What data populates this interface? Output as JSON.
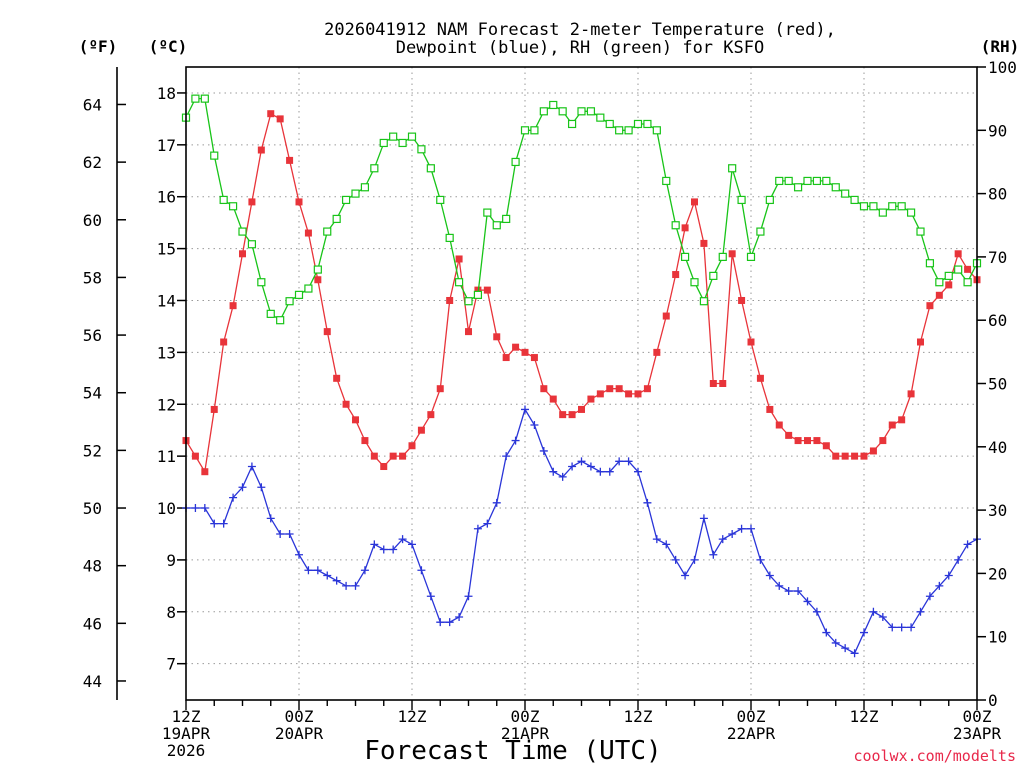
{
  "title": [
    "2026041912 NAM Forecast 2-meter Temperature (red),",
    "Dewpoint (blue), RH (green) for KSFO"
  ],
  "units": {
    "fahrenheit": "(ºF)",
    "celsius": "(ºC)",
    "rh": "(RH)"
  },
  "xlabel": "Forecast Time (UTC)",
  "credit": "coolwx.com/modelts",
  "colors": {
    "temperature": "#e8343a",
    "dewpoint": "#2a35d8",
    "rh": "#18c418",
    "grid": "#9a9a9a"
  },
  "chart_data": {
    "type": "line",
    "x_unit": "forecast hour",
    "x_ticks": [
      {
        "hour": 0,
        "lines": [
          "12Z",
          "19APR",
          "2026"
        ]
      },
      {
        "hour": 12,
        "lines": [
          "00Z",
          "20APR"
        ]
      },
      {
        "hour": 24,
        "lines": [
          "12Z"
        ]
      },
      {
        "hour": 36,
        "lines": [
          "00Z",
          "21APR"
        ]
      },
      {
        "hour": 48,
        "lines": [
          "12Z"
        ]
      },
      {
        "hour": 60,
        "lines": [
          "00Z",
          "22APR"
        ]
      },
      {
        "hour": 72,
        "lines": [
          "12Z"
        ]
      },
      {
        "hour": 84,
        "lines": [
          "00Z",
          "23APR"
        ]
      }
    ],
    "xlim": [
      0,
      84
    ],
    "celsius_axis": {
      "ylim": [
        6.3,
        18.5
      ],
      "ticks": [
        7,
        8,
        9,
        10,
        11,
        12,
        13,
        14,
        15,
        16,
        17,
        18
      ]
    },
    "fahrenheit_axis": {
      "ylim": [
        43.34,
        65.3
      ],
      "ticks": [
        44,
        46,
        48,
        50,
        52,
        54,
        56,
        58,
        60,
        62,
        64
      ]
    },
    "rh_axis": {
      "ylim": [
        0,
        100
      ],
      "ticks": [
        0,
        10,
        20,
        30,
        40,
        50,
        60,
        70,
        80,
        90,
        100
      ]
    },
    "grid": true,
    "series": [
      {
        "name": "Temperature",
        "axis": "celsius",
        "marker": "filled-square",
        "x": [
          0,
          1,
          2,
          3,
          4,
          5,
          6,
          7,
          8,
          9,
          10,
          11,
          12,
          13,
          14,
          15,
          16,
          17,
          18,
          19,
          20,
          21,
          22,
          23,
          24,
          25,
          26,
          27,
          28,
          29,
          30,
          31,
          32,
          33,
          34,
          35,
          36,
          37,
          38,
          39,
          40,
          41,
          42,
          43,
          44,
          45,
          46,
          47,
          48,
          49,
          50,
          51,
          52,
          53,
          54,
          55,
          56,
          57,
          58,
          59,
          60,
          61,
          62,
          63,
          64,
          65,
          66,
          67,
          68,
          69,
          70,
          71,
          72,
          73,
          74,
          75,
          76,
          77,
          78,
          79,
          80,
          81,
          82,
          83,
          84
        ],
        "y": [
          11.3,
          11.0,
          10.7,
          11.9,
          13.2,
          13.9,
          14.9,
          15.9,
          16.9,
          17.6,
          17.5,
          16.7,
          15.9,
          15.3,
          14.4,
          13.4,
          12.5,
          12.0,
          11.7,
          11.3,
          11.0,
          10.8,
          11.0,
          11.0,
          11.2,
          11.5,
          11.8,
          12.3,
          14.0,
          14.8,
          13.4,
          14.2,
          14.2,
          13.3,
          12.9,
          13.1,
          13.0,
          12.9,
          12.3,
          12.1,
          11.8,
          11.8,
          11.9,
          12.1,
          12.2,
          12.3,
          12.3,
          12.2,
          12.2,
          12.3,
          13.0,
          13.7,
          14.5,
          15.4,
          15.9,
          15.1,
          12.4,
          12.4,
          14.9,
          14.0,
          13.2,
          12.5,
          11.9,
          11.6,
          11.4,
          11.3,
          11.3,
          11.3,
          11.2,
          11.0,
          11.0,
          11.0,
          11.0,
          11.1,
          11.3,
          11.6,
          11.7,
          12.2,
          13.2,
          13.9,
          14.1,
          14.3,
          14.9,
          14.6,
          14.4
        ]
      },
      {
        "name": "Dewpoint",
        "axis": "celsius",
        "marker": "plus",
        "x": [
          0,
          1,
          2,
          3,
          4,
          5,
          6,
          7,
          8,
          9,
          10,
          11,
          12,
          13,
          14,
          15,
          16,
          17,
          18,
          19,
          20,
          21,
          22,
          23,
          24,
          25,
          26,
          27,
          28,
          29,
          30,
          31,
          32,
          33,
          34,
          35,
          36,
          37,
          38,
          39,
          40,
          41,
          42,
          43,
          44,
          45,
          46,
          47,
          48,
          49,
          50,
          51,
          52,
          53,
          54,
          55,
          56,
          57,
          58,
          59,
          60,
          61,
          62,
          63,
          64,
          65,
          66,
          67,
          68,
          69,
          70,
          71,
          72,
          73,
          74,
          75,
          76,
          77,
          78,
          79,
          80,
          81,
          82,
          83,
          84
        ],
        "y": [
          10.0,
          10.0,
          10.0,
          9.7,
          9.7,
          10.2,
          10.4,
          10.8,
          10.4,
          9.8,
          9.5,
          9.5,
          9.1,
          8.8,
          8.8,
          8.7,
          8.6,
          8.5,
          8.5,
          8.8,
          9.3,
          9.2,
          9.2,
          9.4,
          9.3,
          8.8,
          8.3,
          7.8,
          7.8,
          7.9,
          8.3,
          9.6,
          9.7,
          10.1,
          11.0,
          11.3,
          11.9,
          11.6,
          11.1,
          10.7,
          10.6,
          10.8,
          10.9,
          10.8,
          10.7,
          10.7,
          10.9,
          10.9,
          10.7,
          10.1,
          9.4,
          9.3,
          9.0,
          8.7,
          9.0,
          9.8,
          9.1,
          9.4,
          9.5,
          9.6,
          9.6,
          9.0,
          8.7,
          8.5,
          8.4,
          8.4,
          8.2,
          8.0,
          7.6,
          7.4,
          7.3,
          7.2,
          7.6,
          8.0,
          7.9,
          7.7,
          7.7,
          7.7,
          8.0,
          8.3,
          8.5,
          8.7,
          9.0,
          9.3,
          9.4
        ]
      },
      {
        "name": "RH",
        "axis": "rh",
        "marker": "open-square",
        "x": [
          0,
          1,
          2,
          3,
          4,
          5,
          6,
          7,
          8,
          9,
          10,
          11,
          12,
          13,
          14,
          15,
          16,
          17,
          18,
          19,
          20,
          21,
          22,
          23,
          24,
          25,
          26,
          27,
          28,
          29,
          30,
          31,
          32,
          33,
          34,
          35,
          36,
          37,
          38,
          39,
          40,
          41,
          42,
          43,
          44,
          45,
          46,
          47,
          48,
          49,
          50,
          51,
          52,
          53,
          54,
          55,
          56,
          57,
          58,
          59,
          60,
          61,
          62,
          63,
          64,
          65,
          66,
          67,
          68,
          69,
          70,
          71,
          72,
          73,
          74,
          75,
          76,
          77,
          78,
          79,
          80,
          81,
          82,
          83,
          84
        ],
        "y": [
          92,
          95,
          95,
          86,
          79,
          78,
          74,
          72,
          66,
          61,
          60,
          63,
          64,
          65,
          68,
          74,
          76,
          79,
          80,
          81,
          84,
          88,
          89,
          88,
          89,
          87,
          84,
          79,
          73,
          66,
          63,
          64,
          77,
          75,
          76,
          85,
          90,
          90,
          93,
          94,
          93,
          91,
          93,
          93,
          92,
          91,
          90,
          90,
          91,
          91,
          90,
          82,
          75,
          70,
          66,
          63,
          67,
          70,
          84,
          79,
          70,
          74,
          79,
          82,
          82,
          81,
          82,
          82,
          82,
          81,
          80,
          79,
          78,
          78,
          77,
          78,
          78,
          77,
          74,
          69,
          66,
          67,
          68,
          66,
          69
        ]
      }
    ]
  }
}
